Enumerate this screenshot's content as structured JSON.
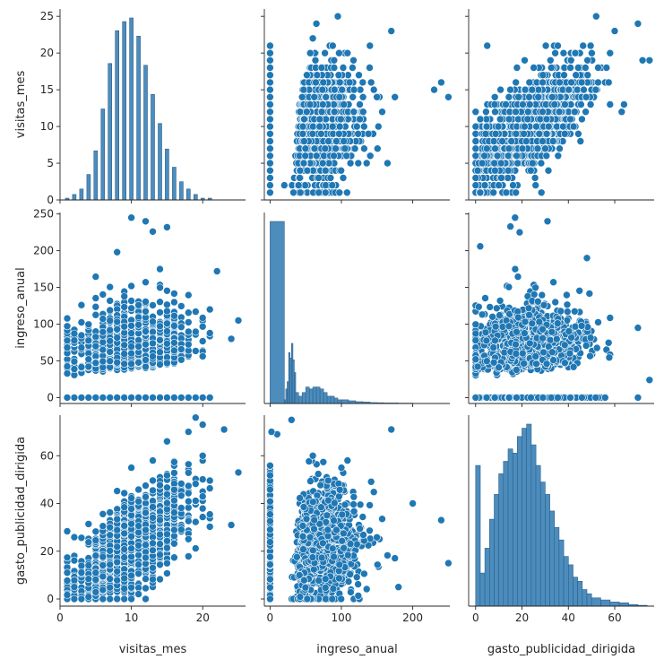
{
  "chart_data": {
    "type": "pairplot",
    "variables": [
      "visitas_mes",
      "ingreso_anual",
      "gasto_publicidad_dirigida"
    ],
    "axis_labels": {
      "x": [
        "visitas_mes",
        "ingreso_anual",
        "gasto_publicidad_dirigida"
      ],
      "y": [
        "visitas_mes",
        "ingreso_anual",
        "gasto_publicidad_dirigida"
      ]
    },
    "ranges": {
      "visitas_mes": [
        0,
        26
      ],
      "ingreso_anual": [
        -8,
        252
      ],
      "gasto_publicidad_dirigida": [
        -3,
        77
      ]
    },
    "ticks": {
      "visitas_mes": [
        0,
        5,
        10,
        15,
        20,
        25
      ],
      "visitas_mes_x": [
        0,
        10,
        20
      ],
      "ingreso_anual": [
        0,
        50,
        100,
        150,
        200,
        250
      ],
      "ingreso_anual_x": [
        0,
        100,
        200
      ],
      "gasto_publicidad_dirigida": [
        0,
        20,
        40,
        60
      ]
    },
    "histograms": {
      "visitas_mes": {
        "bins": [
          1,
          2,
          3,
          4,
          5,
          6,
          7,
          8,
          9,
          10,
          11,
          12,
          13,
          14,
          15,
          16,
          17,
          18,
          19,
          20,
          21
        ],
        "counts": [
          1,
          3,
          6,
          14,
          27,
          50,
          75,
          93,
          98,
          100,
          90,
          74,
          58,
          42,
          28,
          18,
          10,
          6,
          3,
          1,
          1
        ]
      },
      "ingreso_anual": {
        "bins": [
          0,
          20,
          22,
          24,
          26,
          28,
          30,
          32,
          34,
          36,
          40,
          45,
          50,
          55,
          60,
          65,
          70,
          75,
          80,
          85,
          90,
          95,
          100,
          110,
          120,
          130,
          140,
          150,
          160,
          180,
          200
        ],
        "counts": [
          100,
          2,
          8,
          12,
          28,
          25,
          33,
          24,
          17,
          6,
          4,
          6,
          9,
          8,
          9,
          9,
          8,
          6,
          4,
          4,
          3,
          2,
          2,
          1.5,
          1,
          0.8,
          0.5,
          0.4,
          0.3,
          0.2,
          0.1
        ]
      },
      "gasto_publicidad_dirigida": {
        "bins": [
          0,
          2,
          4,
          6,
          8,
          10,
          12,
          14,
          16,
          18,
          20,
          22,
          24,
          26,
          28,
          30,
          32,
          34,
          36,
          38,
          40,
          42,
          44,
          46,
          48,
          50,
          54,
          58,
          62,
          66,
          70
        ],
        "counts": [
          34,
          8,
          14,
          21,
          27,
          32,
          35,
          38,
          37,
          41,
          43,
          44,
          39,
          34,
          30,
          27,
          23,
          19,
          16,
          12,
          10,
          7,
          6,
          4,
          3,
          2,
          1.5,
          1,
          0.8,
          0.4,
          0.2
        ]
      }
    },
    "scatter_samples": {
      "visitas_vs_ingreso": [
        [
          10,
          245
        ],
        [
          12,
          240
        ],
        [
          15,
          232
        ],
        [
          13,
          226
        ],
        [
          8,
          198
        ],
        [
          22,
          172
        ],
        [
          25,
          105
        ],
        [
          3,
          126
        ],
        [
          24,
          80
        ],
        [
          21,
          120
        ],
        [
          1,
          0
        ],
        [
          20,
          0
        ],
        [
          5,
          70
        ]
      ],
      "visitas_vs_gasto": [
        [
          19,
          76
        ],
        [
          20,
          73
        ],
        [
          18,
          70
        ],
        [
          23,
          71
        ],
        [
          25,
          53
        ],
        [
          1,
          11
        ],
        [
          2,
          5
        ],
        [
          20,
          60
        ],
        [
          24,
          31
        ],
        [
          10,
          55
        ],
        [
          15,
          66
        ]
      ],
      "ingreso_vs_gasto": [
        [
          30,
          75
        ],
        [
          170,
          71
        ],
        [
          10,
          69
        ],
        [
          2,
          70
        ],
        [
          250,
          15
        ],
        [
          240,
          33
        ],
        [
          200,
          40
        ],
        [
          180,
          5
        ],
        [
          60,
          60
        ],
        [
          100,
          55
        ]
      ],
      "visitas_visitas_note": "",
      "ingreso_vs_visitas": [
        [
          95,
          25
        ],
        [
          65,
          24
        ],
        [
          170,
          23
        ],
        [
          140,
          21
        ],
        [
          250,
          14
        ],
        [
          240,
          16
        ],
        [
          230,
          15
        ],
        [
          60,
          22
        ],
        [
          40,
          2
        ],
        [
          20,
          2
        ]
      ],
      "gasto_vs_visitas": [
        [
          52,
          25
        ],
        [
          70,
          24
        ],
        [
          75,
          19
        ],
        [
          72,
          19
        ],
        [
          60,
          23
        ],
        [
          2,
          1
        ],
        [
          10,
          2
        ],
        [
          5,
          21
        ],
        [
          63,
          12
        ],
        [
          64,
          13
        ]
      ],
      "gasto_vs_ingreso": [
        [
          17,
          245
        ],
        [
          31,
          240
        ],
        [
          15,
          233
        ],
        [
          19,
          225
        ],
        [
          2,
          206
        ],
        [
          75,
          24
        ],
        [
          70,
          95
        ],
        [
          70,
          0
        ],
        [
          0,
          0
        ],
        [
          48,
          190
        ]
      ]
    }
  }
}
